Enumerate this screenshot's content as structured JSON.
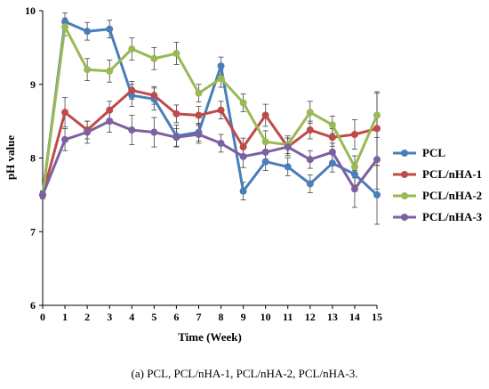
{
  "chart_data": {
    "type": "line",
    "title": "",
    "xlabel": "Time (Week)",
    "ylabel": "pH value",
    "xlim": [
      0,
      15
    ],
    "ylim": [
      6,
      10
    ],
    "x_ticks": [
      0,
      1,
      2,
      3,
      4,
      5,
      6,
      7,
      8,
      9,
      10,
      11,
      12,
      13,
      14,
      15
    ],
    "y_ticks": [
      6,
      7,
      8,
      9,
      10
    ],
    "grid": false,
    "legend": "right",
    "error_bars": true,
    "series": [
      {
        "name": "PCL",
        "color": "#4a7ebb",
        "x": [
          0,
          1,
          2,
          3,
          4,
          5,
          6,
          7,
          8,
          9,
          10,
          11,
          12,
          13,
          14,
          15
        ],
        "y": [
          7.5,
          9.85,
          9.72,
          9.75,
          8.85,
          8.8,
          8.3,
          8.35,
          9.25,
          7.55,
          7.95,
          7.88,
          7.65,
          7.93,
          7.78,
          7.5
        ],
        "err": [
          0.05,
          0.12,
          0.12,
          0.12,
          0.15,
          0.15,
          0.15,
          0.12,
          0.12,
          0.12,
          0.12,
          0.12,
          0.12,
          0.12,
          0.15,
          0.4
        ]
      },
      {
        "name": "PCL/nHA-1",
        "color": "#be4b48",
        "x": [
          0,
          1,
          2,
          3,
          4,
          5,
          6,
          7,
          8,
          9,
          10,
          11,
          12,
          13,
          14,
          15
        ],
        "y": [
          7.5,
          8.62,
          8.38,
          8.65,
          8.92,
          8.85,
          8.6,
          8.58,
          8.65,
          8.15,
          8.58,
          8.15,
          8.38,
          8.28,
          8.32,
          8.4
        ],
        "err": [
          0.05,
          0.2,
          0.12,
          0.12,
          0.12,
          0.12,
          0.12,
          0.12,
          0.12,
          0.12,
          0.15,
          0.12,
          0.12,
          0.12,
          0.2,
          0.5
        ]
      },
      {
        "name": "PCL/nHA-2",
        "color": "#98b954",
        "x": [
          0,
          1,
          2,
          3,
          4,
          5,
          6,
          7,
          8,
          9,
          10,
          11,
          12,
          13,
          14,
          15
        ],
        "y": [
          7.5,
          9.78,
          9.2,
          9.18,
          9.48,
          9.35,
          9.42,
          8.88,
          9.08,
          8.75,
          8.22,
          8.18,
          8.62,
          8.45,
          7.88,
          8.58
        ],
        "err": [
          0.05,
          0.12,
          0.15,
          0.15,
          0.15,
          0.15,
          0.15,
          0.12,
          0.12,
          0.12,
          0.15,
          0.12,
          0.15,
          0.12,
          0.15,
          0.3
        ]
      },
      {
        "name": "PCL/nHA-3",
        "color": "#7d60a0",
        "x": [
          0,
          1,
          2,
          3,
          4,
          5,
          6,
          7,
          8,
          9,
          10,
          11,
          12,
          13,
          14,
          15
        ],
        "y": [
          7.5,
          8.25,
          8.35,
          8.5,
          8.38,
          8.35,
          8.28,
          8.32,
          8.2,
          8.02,
          8.08,
          8.15,
          7.98,
          8.08,
          7.58,
          7.98
        ],
        "err": [
          0.05,
          0.15,
          0.15,
          0.15,
          0.2,
          0.2,
          0.12,
          0.12,
          0.12,
          0.15,
          0.15,
          0.12,
          0.12,
          0.12,
          0.25,
          0.4
        ]
      }
    ]
  },
  "caption": "(a) PCL, PCL/nHA-1, PCL/nHA-2, PCL/nHA-3."
}
